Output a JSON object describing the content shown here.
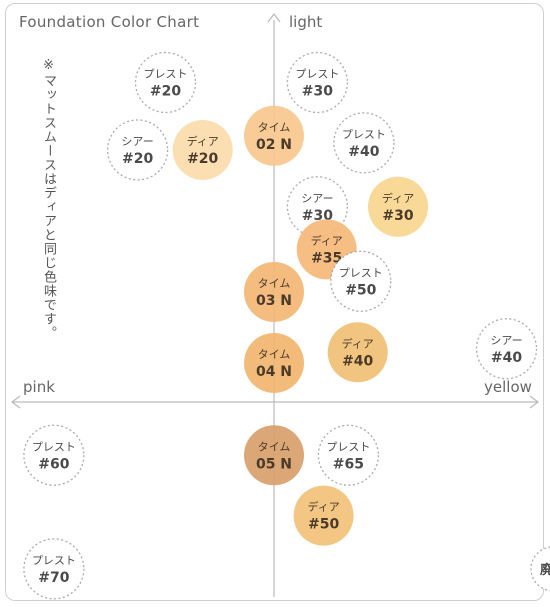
{
  "chart_data": {
    "type": "scatter",
    "title": "Foundation Color Chart",
    "axes": {
      "top": "light",
      "left": "pink",
      "right": "yellow"
    },
    "note": "※マットスムースはディアと同じ色味です。",
    "colors": {
      "outline": "#aaaaaa",
      "axis": "#bbbbbb",
      "dear_light": "#fbdcab",
      "dear_30": "#f8d68f",
      "time_02": "#f8c88e",
      "dear_35": "#f6b97a",
      "time_03": "#f3b674",
      "time_04": "#f2b56e",
      "dear_40": "#f0c075",
      "time_05": "#d9a06b",
      "dear_50": "#f2c278",
      "text_dark": "#4a4a4a",
      "text_fill": "#4a3a2a"
    },
    "points": [
      {
        "label": "プレスト",
        "shade": "#20",
        "x": -3.5,
        "y": 9.0,
        "style": "outline"
      },
      {
        "label": "プレスト",
        "shade": "#30",
        "x": 1.4,
        "y": 9.0,
        "style": "outline"
      },
      {
        "label": "シアー",
        "shade": "#20",
        "x": -4.4,
        "y": 7.1,
        "style": "outline"
      },
      {
        "label": "ディア",
        "shade": "#20",
        "x": -2.3,
        "y": 7.1,
        "style": "filled",
        "color": "dear_light"
      },
      {
        "label": "タイム",
        "shade": "02 N",
        "x": 0.0,
        "y": 7.5,
        "style": "filled",
        "color": "time_02"
      },
      {
        "label": "プレスト",
        "shade": "#40",
        "x": 2.9,
        "y": 7.3,
        "style": "outline"
      },
      {
        "label": "シアー",
        "shade": "#30",
        "x": 1.4,
        "y": 5.5,
        "style": "outline"
      },
      {
        "label": "ディア",
        "shade": "#30",
        "x": 4.0,
        "y": 5.5,
        "style": "filled",
        "color": "dear_30"
      },
      {
        "label": "ディア",
        "shade": "#35",
        "x": 1.7,
        "y": 4.3,
        "style": "filled",
        "color": "dear_35"
      },
      {
        "label": "プレスト",
        "shade": "#50",
        "x": 2.8,
        "y": 3.4,
        "style": "outline"
      },
      {
        "label": "タイム",
        "shade": "03 N",
        "x": 0.0,
        "y": 3.1,
        "style": "filled",
        "color": "time_03"
      },
      {
        "label": "タイム",
        "shade": "04 N",
        "x": 0.0,
        "y": 1.1,
        "style": "filled",
        "color": "time_04"
      },
      {
        "label": "ディア",
        "shade": "#40",
        "x": 2.7,
        "y": 1.4,
        "style": "filled",
        "color": "dear_40"
      },
      {
        "label": "シアー",
        "shade": "#40",
        "x": 7.5,
        "y": 1.5,
        "style": "outline"
      },
      {
        "label": "プレスト",
        "shade": "#60",
        "x": -7.1,
        "y": -1.5,
        "style": "outline"
      },
      {
        "label": "タイム",
        "shade": "05 N",
        "x": 0.0,
        "y": -1.5,
        "style": "filled",
        "color": "time_05"
      },
      {
        "label": "プレスト",
        "shade": "#65",
        "x": 2.4,
        "y": -1.5,
        "style": "outline"
      },
      {
        "label": "ディア",
        "shade": "#50",
        "x": 1.6,
        "y": -3.2,
        "style": "filled",
        "color": "dear_50"
      },
      {
        "label": "プレスト",
        "shade": "#70",
        "x": -7.1,
        "y": -4.7,
        "style": "outline"
      },
      {
        "label": "廃盤",
        "shade": "",
        "x": 9.0,
        "y": -4.7,
        "style": "outline_small"
      }
    ]
  }
}
